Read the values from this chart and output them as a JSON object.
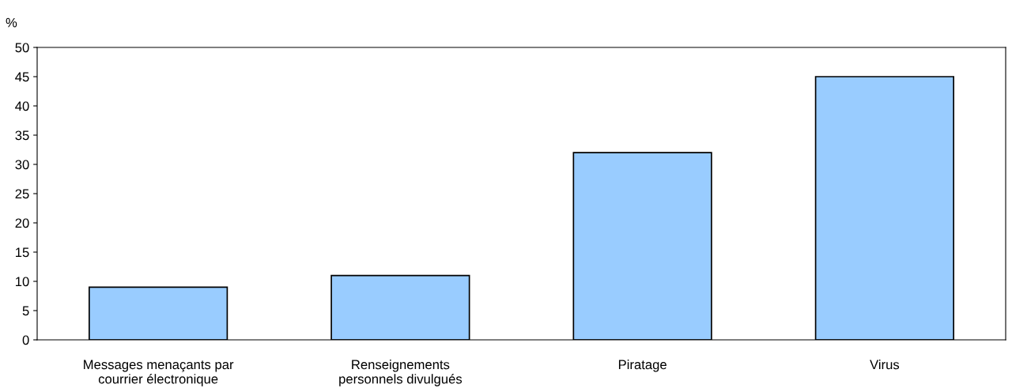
{
  "chart_data": {
    "type": "bar",
    "ylabel": "%",
    "categories": [
      "Messages menaçants par\ncourrier électronique",
      "Renseignements\npersonnels divulgués",
      "Piratage",
      "Virus"
    ],
    "values": [
      9,
      11,
      32,
      45
    ],
    "color": "#99ccff",
    "ylim": [
      0,
      50
    ],
    "yticks": [
      0,
      5,
      10,
      15,
      20,
      25,
      30,
      35,
      40,
      45,
      50
    ],
    "grid": false
  }
}
